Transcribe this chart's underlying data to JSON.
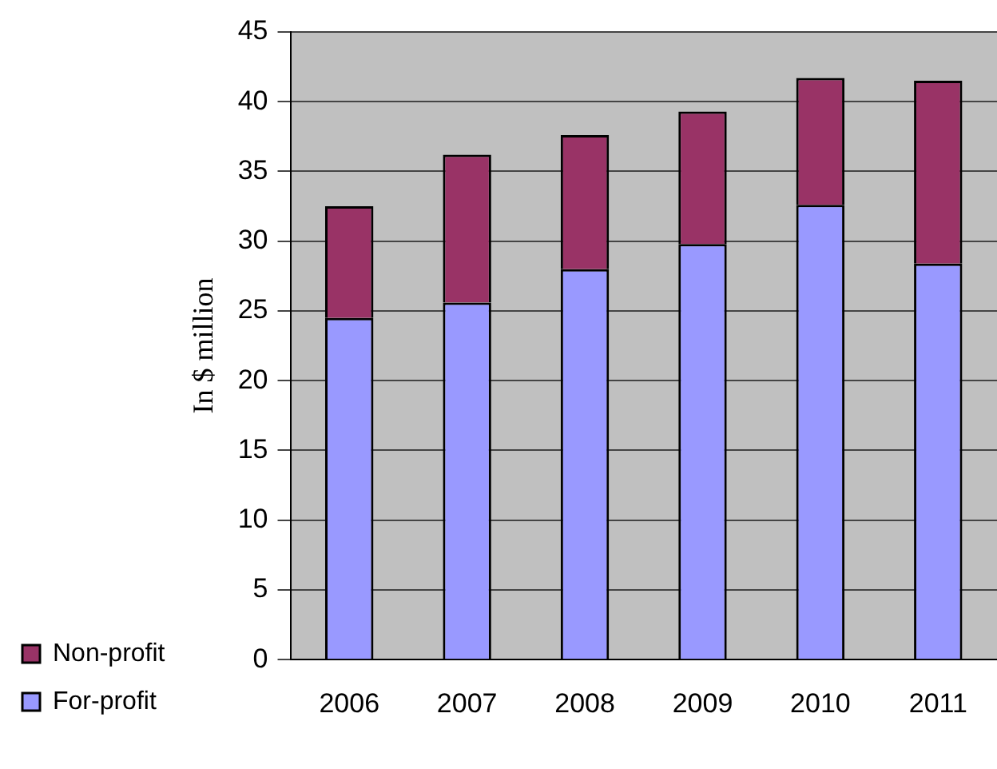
{
  "chart_data": {
    "type": "bar",
    "stacked": true,
    "ylabel": "In $ million",
    "categories": [
      "2006",
      "2007",
      "2008",
      "2009",
      "2010",
      "2011"
    ],
    "series": [
      {
        "name": "For-profit",
        "color": "#9999ff",
        "values": [
          24.5,
          25.6,
          28.0,
          29.8,
          32.6,
          28.4
        ]
      },
      {
        "name": "Non-profit",
        "color": "#993366",
        "values": [
          8.0,
          10.6,
          9.6,
          9.5,
          9.1,
          13.1
        ]
      }
    ],
    "ylim": [
      0,
      45
    ],
    "yticks": [
      0,
      5,
      10,
      15,
      20,
      25,
      30,
      35,
      40,
      45
    ],
    "grid": "y",
    "legend": "left"
  }
}
